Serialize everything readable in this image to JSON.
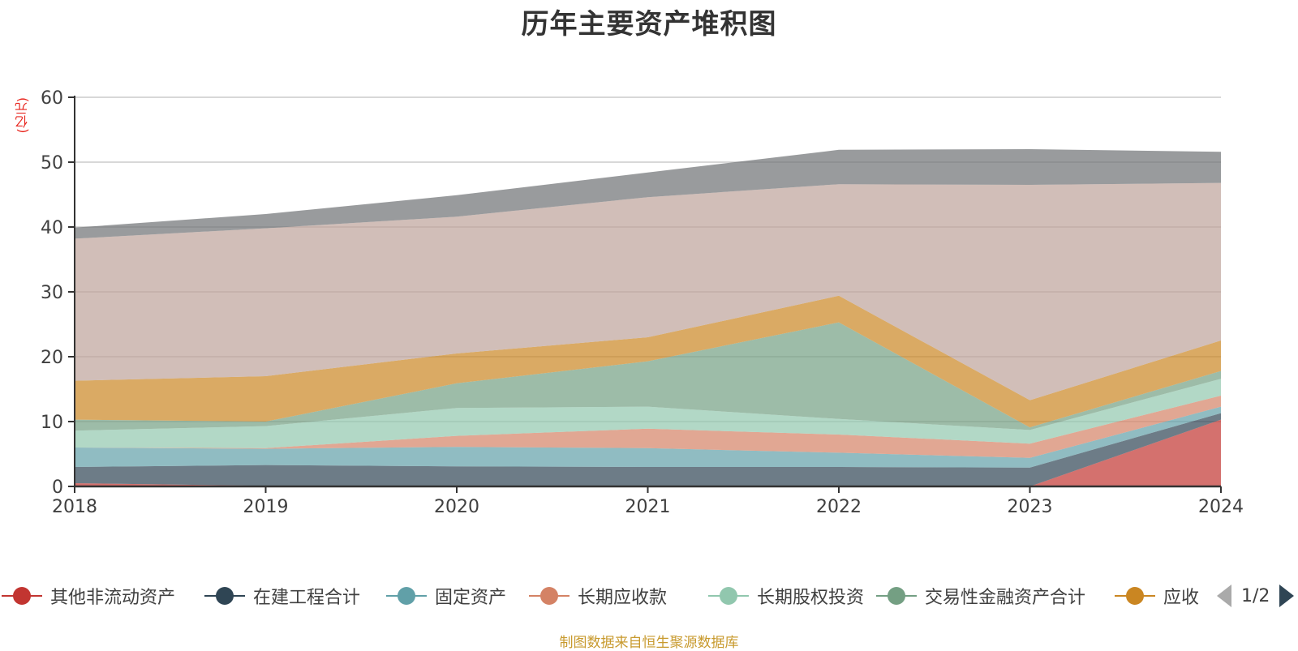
{
  "title": "历年主要资产堆积图",
  "unit_label": "(亿元)",
  "source_note": "制图数据来自恒生聚源数据库",
  "legend": {
    "page_indicator": "1/2",
    "prev_icon": "triangle-left-icon",
    "next_icon": "triangle-right-icon",
    "items": [
      {
        "name": "其他非流动资产",
        "color": "#c23531"
      },
      {
        "name": "在建工程合计",
        "color": "#2f4554"
      },
      {
        "name": "固定资产",
        "color": "#61a0a8"
      },
      {
        "name": "长期应收款",
        "color": "#d48265"
      },
      {
        "name": "长期股权投资",
        "color": "#91c7ae"
      },
      {
        "name": "交易性金融资产合计",
        "color": "#749f83"
      },
      {
        "name": "应收",
        "color": "#ca8622"
      }
    ]
  },
  "chart_data": {
    "type": "area",
    "stacked": true,
    "title": "历年主要资产堆积图",
    "ylabel": "(亿元)",
    "xlabel": "",
    "ylim": [
      0,
      60
    ],
    "yticks": [
      0,
      10,
      20,
      30,
      40,
      50,
      60
    ],
    "grid": true,
    "legend_position": "bottom",
    "categories": [
      "2018",
      "2019",
      "2020",
      "2021",
      "2022",
      "2023",
      "2024"
    ],
    "series": [
      {
        "name": "其他非流动资产",
        "color": "#c23531",
        "values": [
          0.5,
          0.1,
          0.0,
          0.0,
          0.0,
          0.0,
          10.3
        ]
      },
      {
        "name": "在建工程合计",
        "color": "#2f4554",
        "values": [
          2.5,
          3.2,
          3.1,
          3.0,
          3.0,
          2.9,
          1.0
        ]
      },
      {
        "name": "固定资产",
        "color": "#61a0a8",
        "values": [
          3.0,
          2.5,
          3.0,
          2.9,
          2.2,
          1.5,
          1.0
        ]
      },
      {
        "name": "长期应收款",
        "color": "#d48265",
        "values": [
          0.0,
          0.1,
          1.7,
          3.0,
          2.8,
          2.2,
          1.7
        ]
      },
      {
        "name": "长期股权投资",
        "color": "#91c7ae",
        "values": [
          2.6,
          3.4,
          4.3,
          3.4,
          2.4,
          2.1,
          2.6
        ]
      },
      {
        "name": "交易性金融资产合计",
        "color": "#749f83",
        "values": [
          1.7,
          0.7,
          3.8,
          7.0,
          14.9,
          0.4,
          1.2
        ]
      },
      {
        "name": "应收",
        "color": "#ca8622",
        "values": [
          6.0,
          7.0,
          4.6,
          3.7,
          4.1,
          4.2,
          4.7
        ]
      },
      {
        "name": "",
        "color": "#bda29a",
        "values": [
          21.9,
          22.8,
          21.1,
          21.6,
          17.2,
          33.2,
          24.3
        ]
      },
      {
        "name": "",
        "color": "#6e7074",
        "values": [
          1.7,
          2.2,
          3.3,
          3.8,
          5.3,
          5.5,
          4.8
        ]
      }
    ]
  }
}
